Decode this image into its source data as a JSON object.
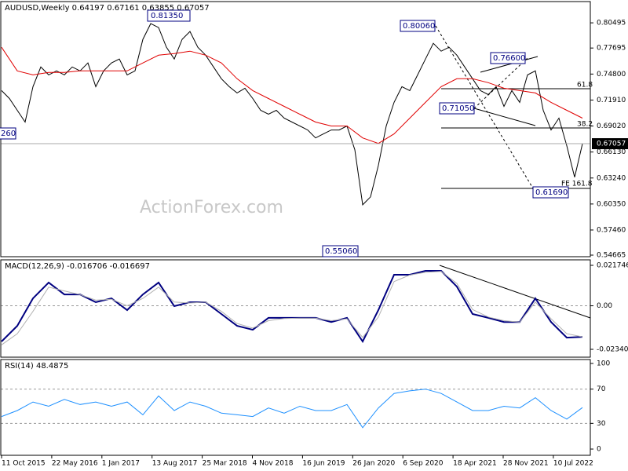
{
  "chart_data": [
    {
      "type": "line",
      "title": "AUDUSD,Weekly  0.64197 0.67161 0.63855 0.67057",
      "series": [
        {
          "color": "#000000",
          "values": [
            0.7296,
            0.7208,
            0.7077,
            0.6946,
            0.734,
            0.7559,
            0.7471,
            0.7515,
            0.7471,
            0.7559,
            0.7515,
            0.7603,
            0.734,
            0.7515,
            0.7603,
            0.7647,
            0.7471,
            0.7515,
            0.7866,
            0.8041,
            0.7997,
            0.7778,
            0.7647,
            0.7866,
            0.7953,
            0.7778,
            0.769,
            0.7559,
            0.7428,
            0.734,
            0.727,
            0.7322,
            0.7208,
            0.7077,
            0.7033,
            0.7077,
            0.699,
            0.6946,
            0.6902,
            0.6858,
            0.677,
            0.6814,
            0.6858,
            0.6858,
            0.6902,
            0.6639,
            0.6026,
            0.6114,
            0.6464,
            0.6902,
            0.7165,
            0.734,
            0.7296,
            0.7471,
            0.7647,
            0.7822,
            0.7734,
            0.7778,
            0.769,
            0.7559,
            0.7428,
            0.7296,
            0.7252,
            0.734,
            0.7121,
            0.7296,
            0.7165,
            0.7471,
            0.7515,
            0.7077,
            0.6858,
            0.699,
            0.6683,
            0.6332,
            0.67057
          ]
        },
        {
          "color": "#e00000",
          "values": [
            0.7778,
            0.7515,
            0.7471,
            0.7498,
            0.7498,
            0.7515,
            0.7515,
            0.7515,
            0.7515,
            0.7603,
            0.769,
            0.7708,
            0.7734,
            0.769,
            0.7603,
            0.7428,
            0.7296,
            0.7208,
            0.7121,
            0.7033,
            0.6946,
            0.6902,
            0.6902,
            0.677,
            0.6709,
            0.6814,
            0.699,
            0.7165,
            0.734,
            0.7428,
            0.7428,
            0.7384,
            0.7322,
            0.7296,
            0.727,
            0.7165,
            0.7077,
            0.699
          ]
        }
      ],
      "ylim": [
        0.5449,
        0.8286
      ],
      "yticks": [
        0.80495,
        0.77695,
        {
          "value": 0.748,
          "label": "0.74800"
        },
        {
          "value": 0.7191,
          "label": "0.71910"
        },
        {
          "value": 0.6902,
          "label": "0.69020"
        },
        {
          "value": 0.6613,
          "label": "0.66130"
        },
        {
          "value": 0.6324,
          "label": "0.63240"
        },
        {
          "value": 0.6035,
          "label": "0.60350"
        },
        {
          "value": 0.5746,
          "label": "0.57460"
        },
        0.54665
      ],
      "grid": false,
      "current_price": 0.67057,
      "annotations": [
        "0.81350",
        "0.80060",
        "0.76600",
        "0.71050",
        "0.61690",
        "0.55060",
        "260",
        "61.8",
        "38.2",
        "FE 161.8"
      ],
      "watermark": "ActionForex.com"
    },
    {
      "type": "line",
      "title": "MACD(12,26,9) -0.016706 -0.016697",
      "series": [
        {
          "color": "#000080",
          "values": [
            -0.0192,
            -0.0108,
            0.004,
            0.0125,
            0.0061,
            0.0061,
            0.0019,
            0.004,
            -0.0023,
            0.0061,
            0.0125,
            -0.0002,
            0.0019,
            0.0019,
            -0.0044,
            -0.0108,
            -0.0129,
            -0.0065,
            -0.0065,
            -0.0065,
            -0.0065,
            -0.0087,
            -0.0065,
            -0.0192,
            -0.0023,
            0.0167,
            0.0167,
            0.0188,
            0.0188,
            0.0103,
            -0.0044,
            -0.0065,
            -0.0087,
            -0.0087,
            0.004,
            -0.0087,
            -0.0171,
            -0.016706
          ]
        },
        {
          "color": "#b0b0b0",
          "values": [
            -0.021,
            -0.015,
            -0.003,
            0.01,
            0.008,
            0.006,
            0.003,
            0.0035,
            0.0,
            0.004,
            0.01,
            0.002,
            0.0015,
            0.002,
            -0.003,
            -0.0095,
            -0.012,
            -0.008,
            -0.0068,
            -0.0066,
            -0.0066,
            -0.008,
            -0.007,
            -0.017,
            -0.006,
            0.013,
            0.0165,
            0.018,
            0.0185,
            0.012,
            -0.002,
            -0.006,
            -0.008,
            -0.0088,
            0.002,
            -0.007,
            -0.015,
            -0.016697
          ]
        }
      ],
      "ylim": [
        -0.02762,
        0.0247
      ],
      "yticks": [
        0.021746,
        {
          "value": 0,
          "label": "0.00"
        },
        -0.023404
      ],
      "grid": true
    },
    {
      "type": "line",
      "title": "RSI(14) 48.4875",
      "series": [
        {
          "color": "#1e90ff",
          "values": [
            38,
            45,
            55,
            50,
            58,
            52,
            55,
            50,
            55,
            40,
            62,
            45,
            55,
            50,
            42,
            40,
            38,
            48,
            42,
            50,
            45,
            45,
            52,
            25,
            48,
            65,
            68,
            70,
            65,
            55,
            45,
            45,
            50,
            48,
            60,
            45,
            35,
            48.4875
          ]
        }
      ],
      "ylim": [
        -7.3,
        104.6
      ],
      "yticks": [
        100,
        70,
        30,
        0
      ],
      "grid": true,
      "xtick_labels": [
        "11 Oct 2015",
        "22 May 2016",
        "1 Jan 2017",
        "13 Aug 2017",
        "25 Mar 2018",
        "4 Nov 2018",
        "16 Jun 2019",
        "26 Jan 2020",
        "6 Sep 2020",
        "18 Apr 2021",
        "28 Nov 2021",
        "10 Jul 2022"
      ]
    }
  ]
}
